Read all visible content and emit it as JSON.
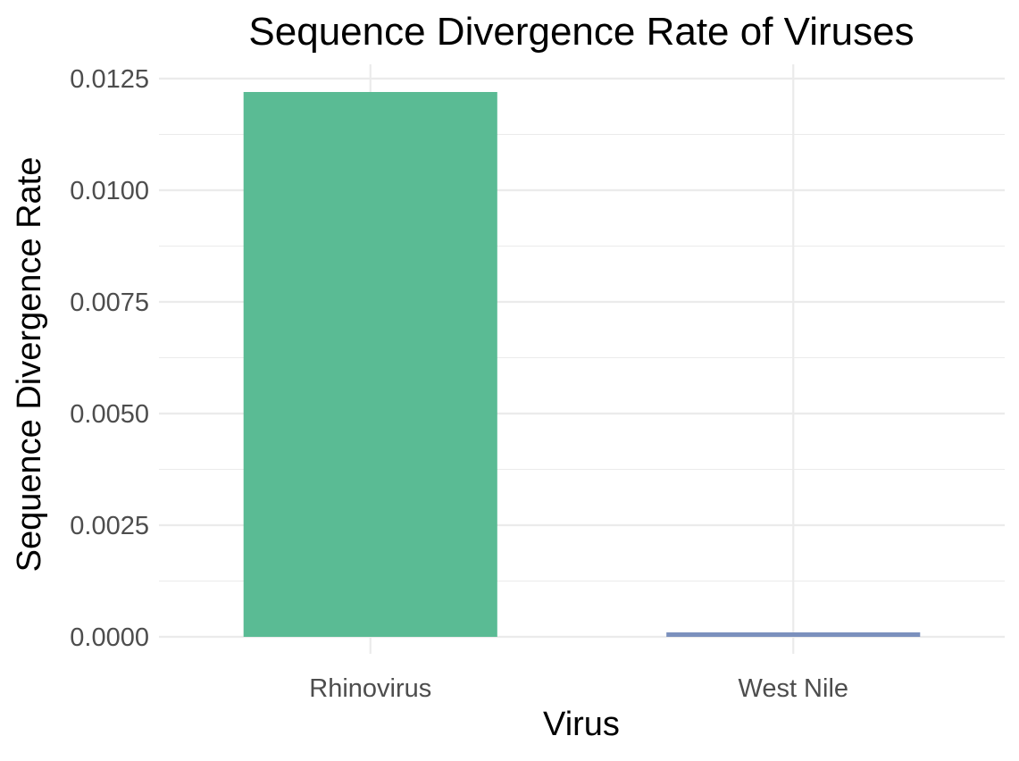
{
  "chart_data": {
    "type": "bar",
    "title": "Sequence Divergence Rate of Viruses",
    "xlabel": "Virus",
    "ylabel": "Sequence Divergence Rate",
    "categories": [
      "Rhinovirus",
      "West Nile"
    ],
    "values": [
      0.0122,
      0.0001
    ],
    "colors": [
      "#5abb94",
      "#7b90bd"
    ],
    "ylim": [
      0,
      0.0125
    ],
    "yticks": [
      0.0,
      0.0025,
      0.005,
      0.0075,
      0.01,
      0.0125
    ],
    "ytick_labels": [
      "0.0000",
      "0.0025",
      "0.0050",
      "0.0075",
      "0.0100",
      "0.0125"
    ],
    "grid": true,
    "legend": "none"
  }
}
